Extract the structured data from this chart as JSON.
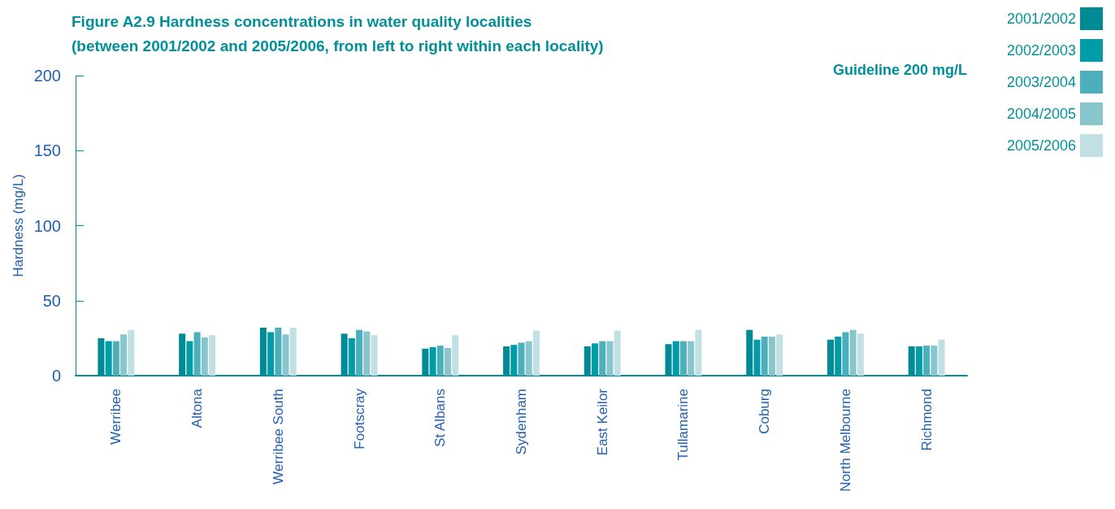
{
  "chart_data": {
    "type": "bar",
    "title": "Figure A2.9 Hardness concentrations in water quality localities\n(between 2001/2002 and 2005/2006, from left to right within each locality)",
    "ylabel": "Hardness (mg/L)",
    "annotations": [
      "Guideline 200 mg/L"
    ],
    "categories": [
      "Werribee",
      "Altona",
      "Werribee South",
      "Footscray",
      "St Albans",
      "Sydenham",
      "East Keilor",
      "Tullamarine",
      "Coburg",
      "North Melbourne",
      "Richmond"
    ],
    "series": [
      {
        "name": "2001/2002",
        "color": "#008a96",
        "values": [
          25,
          28,
          32,
          28,
          18,
          19.5,
          19.5,
          21,
          30.5,
          24,
          19.5
        ]
      },
      {
        "name": "2002/2003",
        "color": "#009ca8",
        "values": [
          23,
          23,
          29,
          25,
          19,
          20.5,
          21.5,
          23,
          24,
          26,
          19.5
        ]
      },
      {
        "name": "2003/2004",
        "color": "#4bb0bc",
        "values": [
          23,
          29,
          32,
          30.5,
          20,
          22,
          23,
          23,
          26,
          29,
          20
        ]
      },
      {
        "name": "2004/2005",
        "color": "#88c5cc",
        "values": [
          27.5,
          25.5,
          27.5,
          29.5,
          18.5,
          23,
          23,
          23,
          26,
          30.5,
          20
        ]
      },
      {
        "name": "2005/2006",
        "color": "#c0e0e4",
        "values": [
          30.5,
          27,
          32,
          27,
          27,
          30,
          30,
          30.5,
          27.5,
          28,
          24
        ]
      }
    ],
    "ylim": [
      0,
      200
    ],
    "yticks": [
      0,
      50,
      100,
      150,
      200
    ],
    "grid": false,
    "legend": "top right"
  }
}
